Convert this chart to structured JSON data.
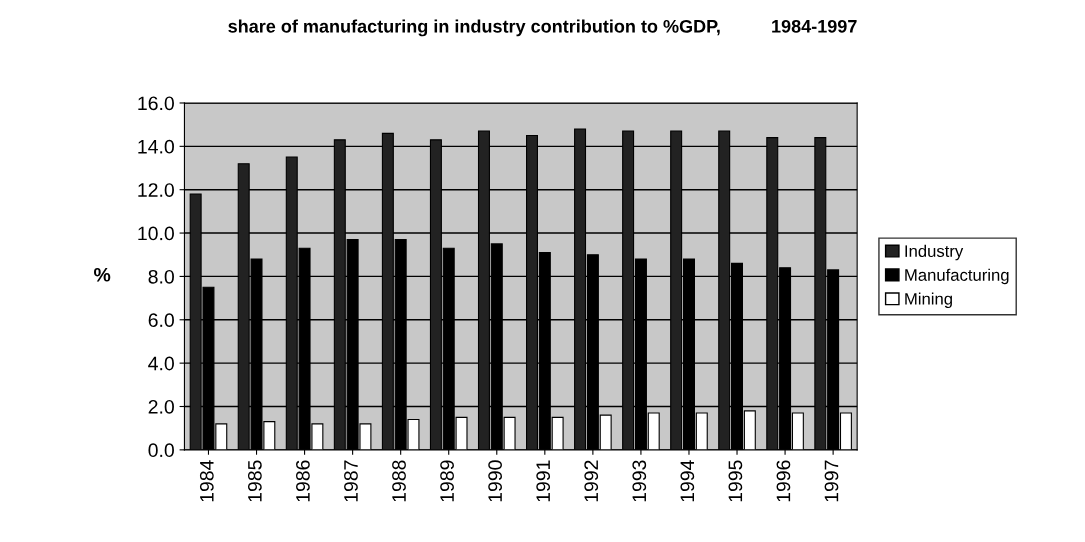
{
  "chart_data": {
    "type": "bar",
    "title": "share of manufacturing in industry contribution to %GDP,          1984-1997",
    "ylabel": "%",
    "categories": [
      "1984",
      "1985",
      "1986",
      "1987",
      "1988",
      "1989",
      "1990",
      "1991",
      "1992",
      "1993",
      "1994",
      "1995",
      "1996",
      "1997"
    ],
    "series": [
      {
        "name": "Industry",
        "color": "#222222",
        "values": [
          11.8,
          13.2,
          13.5,
          14.3,
          14.6,
          14.3,
          14.7,
          14.5,
          14.8,
          14.7,
          14.7,
          14.7,
          14.4,
          14.4
        ]
      },
      {
        "name": "Manufacturing",
        "color": "#000000",
        "values": [
          7.5,
          8.8,
          9.3,
          9.7,
          9.7,
          9.3,
          9.5,
          9.1,
          9.0,
          8.8,
          8.8,
          8.6,
          8.4,
          8.3
        ]
      },
      {
        "name": "Mining",
        "color": "#ffffff",
        "values": [
          1.2,
          1.3,
          1.2,
          1.2,
          1.4,
          1.5,
          1.5,
          1.5,
          1.6,
          1.7,
          1.7,
          1.8,
          1.7,
          1.7
        ]
      }
    ],
    "ylim": [
      0,
      16
    ],
    "yticks": [
      {
        "value": 0,
        "label": "0.0"
      },
      {
        "value": 2,
        "label": "2.0"
      },
      {
        "value": 4,
        "label": "4.0"
      },
      {
        "value": 6,
        "label": "6.0"
      },
      {
        "value": 8,
        "label": "8.0"
      },
      {
        "value": 10,
        "label": "10.0"
      },
      {
        "value": 12,
        "label": "12.0"
      },
      {
        "value": 14,
        "label": "14.0"
      },
      {
        "value": 16,
        "label": "16.0"
      }
    ],
    "grid": "y",
    "legend": "right"
  }
}
